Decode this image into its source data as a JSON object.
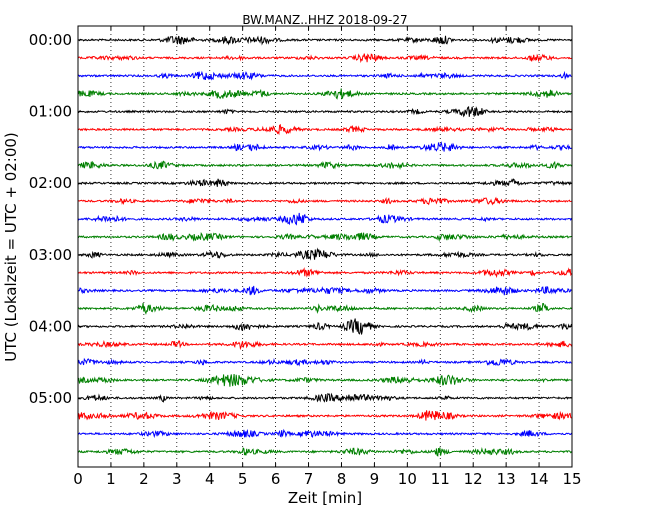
{
  "chart_data": {
    "type": "line",
    "title": "BW.MANZ..HHZ 2018-09-27",
    "xlabel": "Zeit  [min]",
    "ylabel": "UTC (Lokalzeit = UTC + 02:00)",
    "xlim": [
      0,
      15
    ],
    "x_ticks": [
      "0",
      "1",
      "2",
      "3",
      "4",
      "5",
      "6",
      "7",
      "8",
      "9",
      "10",
      "11",
      "12",
      "13",
      "14",
      "15"
    ],
    "y_tick_labels": [
      "00:00",
      "01:00",
      "02:00",
      "03:00",
      "04:00",
      "05:00"
    ],
    "grid": "vertical dotted lines at each minute",
    "trace_colors": [
      "#000000",
      "#ff0000",
      "#0000ff",
      "#008000"
    ],
    "traces_per_hour": 4,
    "trace_count": 24,
    "trace_start_times": [
      "00:00",
      "00:15",
      "00:30",
      "00:45",
      "01:00",
      "01:15",
      "01:30",
      "01:45",
      "02:00",
      "02:15",
      "02:30",
      "02:45",
      "03:00",
      "03:15",
      "03:30",
      "03:45",
      "04:00",
      "04:15",
      "04:30",
      "04:45",
      "05:00",
      "05:15",
      "05:30",
      "05:45"
    ]
  }
}
